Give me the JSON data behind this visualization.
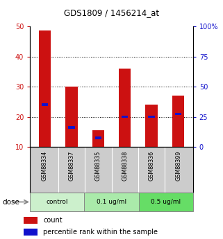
{
  "title": "GDS1809 / 1456214_at",
  "samples": [
    "GSM88334",
    "GSM88337",
    "GSM88335",
    "GSM88338",
    "GSM88336",
    "GSM88399"
  ],
  "red_values": [
    48.5,
    30.0,
    15.5,
    36.0,
    24.0,
    27.0
  ],
  "blue_values": [
    24.0,
    16.5,
    13.0,
    20.0,
    20.0,
    21.0
  ],
  "ylim_left": [
    10,
    50
  ],
  "ylim_right": [
    0,
    100
  ],
  "yticks_left": [
    10,
    20,
    30,
    40,
    50
  ],
  "yticks_right": [
    0,
    25,
    50,
    75,
    100
  ],
  "ytick_labels_left": [
    "10",
    "20",
    "30",
    "40",
    "50"
  ],
  "ytick_labels_right": [
    "0",
    "25",
    "50",
    "75",
    "100%"
  ],
  "groups": [
    {
      "label": "control",
      "color": "#ccf0cc"
    },
    {
      "label": "0.1 ug/ml",
      "color": "#aaeaaa"
    },
    {
      "label": "0.5 ug/ml",
      "color": "#66dd66"
    }
  ],
  "bar_color": "#cc1111",
  "blue_color": "#1111cc",
  "bar_width": 0.45,
  "bg_color": "#ffffff",
  "label_area_color": "#cccccc",
  "dose_label": "dose",
  "legend_count": "count",
  "legend_pct": "percentile rank within the sample",
  "grid_yticks": [
    20,
    30,
    40
  ]
}
